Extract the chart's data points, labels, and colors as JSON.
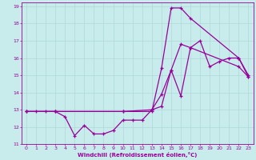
{
  "xlabel": "Windchill (Refroidissement éolien,°C)",
  "ylabel": "",
  "xlim": [
    -0.5,
    23.5
  ],
  "ylim": [
    11,
    19.2
  ],
  "yticks": [
    11,
    12,
    13,
    14,
    15,
    16,
    17,
    18,
    19
  ],
  "xticks": [
    0,
    1,
    2,
    3,
    4,
    5,
    6,
    7,
    8,
    9,
    10,
    11,
    12,
    13,
    14,
    15,
    16,
    17,
    18,
    19,
    20,
    21,
    22,
    23
  ],
  "background_color": "#c8ecec",
  "line_color": "#990099",
  "grid_color": "#b0d8d8",
  "line1_x": [
    0,
    1,
    2,
    3,
    4,
    5,
    6,
    7,
    8,
    9,
    10,
    11,
    12,
    13,
    14,
    15,
    16,
    17,
    18,
    19,
    20,
    21,
    22,
    23
  ],
  "line1_y": [
    12.9,
    12.9,
    12.9,
    12.9,
    12.6,
    11.5,
    12.1,
    11.6,
    11.6,
    11.8,
    12.4,
    12.4,
    12.4,
    13.0,
    13.9,
    15.3,
    13.8,
    16.6,
    17.0,
    15.5,
    15.8,
    16.0,
    16.0,
    15.0
  ],
  "line2_x": [
    0,
    3,
    10,
    13,
    14,
    15,
    16,
    17,
    22,
    23
  ],
  "line2_y": [
    12.9,
    12.9,
    12.9,
    12.9,
    15.4,
    18.9,
    18.9,
    18.3,
    16.0,
    14.9
  ],
  "line3_x": [
    0,
    3,
    10,
    13,
    14,
    15,
    16,
    17,
    22,
    23
  ],
  "line3_y": [
    12.9,
    12.9,
    12.9,
    13.0,
    13.2,
    15.3,
    16.8,
    16.6,
    15.5,
    14.9
  ]
}
